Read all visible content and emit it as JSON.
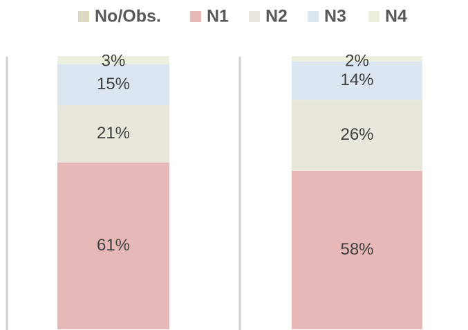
{
  "chart_data": {
    "type": "stacked-bar",
    "categories": [
      null,
      null
    ],
    "series": [
      {
        "name": "No/Obs.",
        "color": "#ddd9c4",
        "values": [
          0,
          0
        ]
      },
      {
        "name": "N1",
        "color": "#e6b8b7",
        "values": [
          61,
          58
        ],
        "value_labels": [
          "61%",
          "58%"
        ]
      },
      {
        "name": "N2",
        "color": "#e9e7db",
        "values": [
          21,
          26
        ],
        "value_labels": [
          "21%",
          "26%"
        ]
      },
      {
        "name": "N3",
        "color": "#dce6f1",
        "values": [
          15,
          14
        ],
        "value_labels": [
          "15%",
          "14%"
        ]
      },
      {
        "name": "N4",
        "color": "#ebf1de",
        "values": [
          3,
          2
        ],
        "value_labels": [
          "3%",
          "2%"
        ]
      }
    ],
    "legend": "top"
  }
}
